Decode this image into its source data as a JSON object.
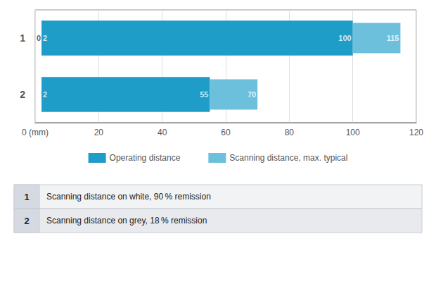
{
  "chart_data": {
    "type": "bar",
    "orientation": "horizontal",
    "categories": [
      "1",
      "2"
    ],
    "series": [
      {
        "name": "Operating distance",
        "color": "#1E9DC8",
        "values": [
          [
            2,
            100
          ],
          [
            2,
            55
          ]
        ]
      },
      {
        "name": "Scanning distance, max. typical",
        "color": "#6DC0DC",
        "values": [
          [
            100,
            115
          ],
          [
            55,
            70
          ]
        ]
      }
    ],
    "xlim": [
      0,
      120
    ],
    "xticks": [
      {
        "value": 0,
        "label": "0 (mm)"
      },
      20,
      40,
      60,
      80,
      100,
      120
    ],
    "grid": true,
    "legend": "bottom",
    "annotations": [
      {
        "category": "1",
        "x": 0,
        "text": "0"
      },
      {
        "category": "1",
        "x": 2,
        "text": "2"
      },
      {
        "category": "1",
        "x": 100,
        "text": "100"
      },
      {
        "category": "1",
        "x": 115,
        "text": "115"
      },
      {
        "category": "2",
        "x": 2,
        "text": "2"
      },
      {
        "category": "2",
        "x": 55,
        "text": "55"
      },
      {
        "category": "2",
        "x": 70,
        "text": "70"
      }
    ],
    "table": [
      {
        "num": "1",
        "text": "Scanning distance on white, 90 % remission"
      },
      {
        "num": "2",
        "text": "Scanning distance on grey, 18 % remission"
      }
    ]
  }
}
